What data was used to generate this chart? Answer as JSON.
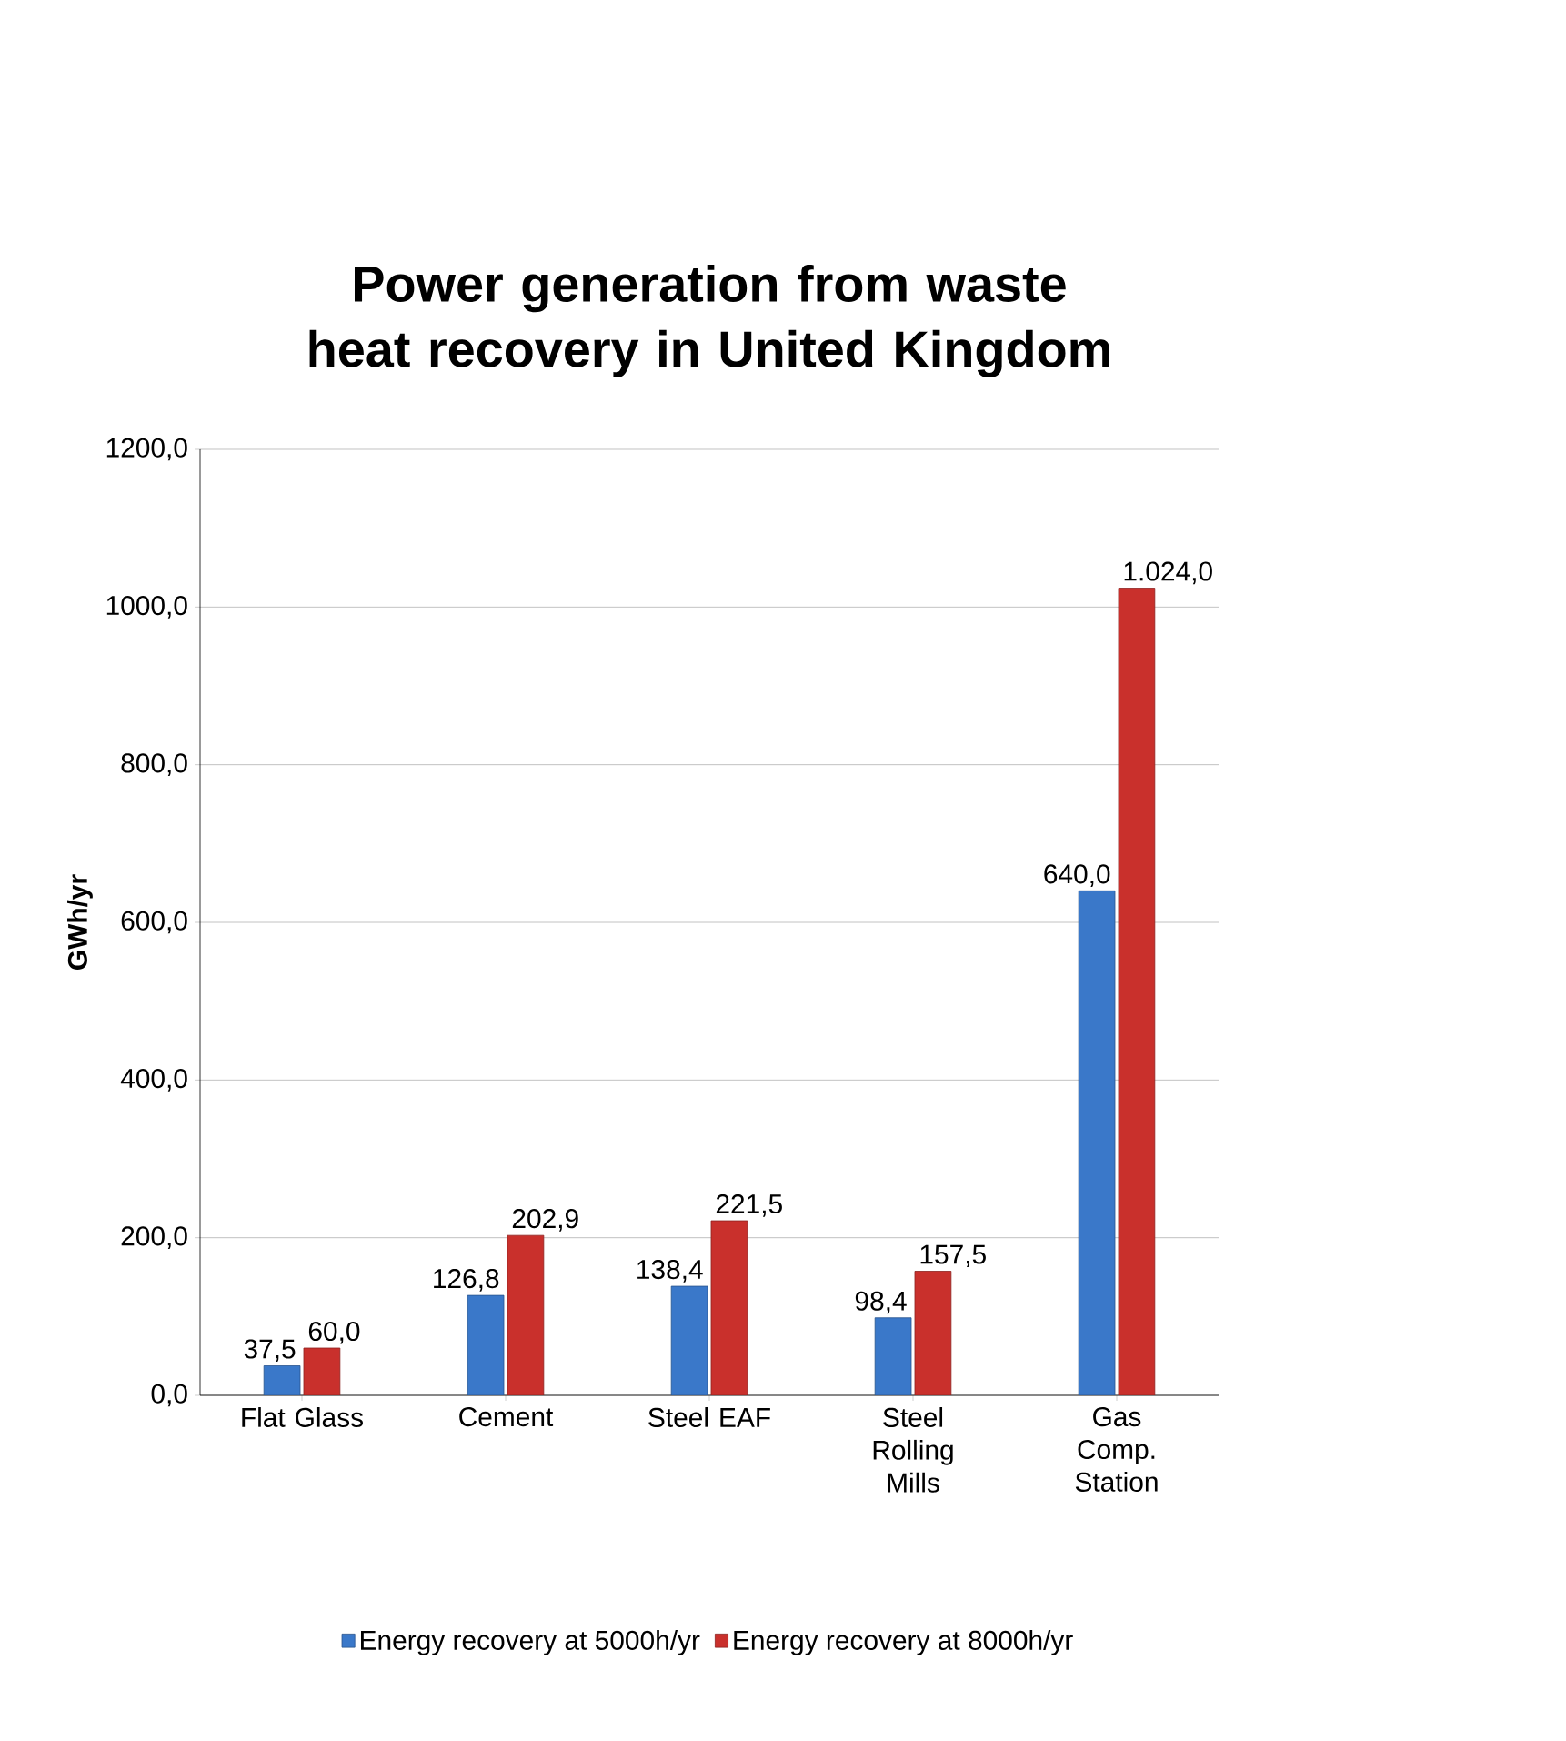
{
  "chart_data": {
    "type": "bar",
    "title": "Power generation from waste heat recovery in United Kingdom",
    "ylabel": "GWh/yr",
    "categories": [
      "Flat Glass",
      "Cement",
      "Steel EAF",
      "Steel Rolling Mills",
      "Gas Comp. Station"
    ],
    "series": [
      {
        "name": "Energy recovery at 5000h/yr",
        "color": "#3a78c9",
        "values": [
          37.5,
          126.8,
          138.4,
          98.4,
          640.0
        ],
        "value_labels": [
          "37,5",
          "126,8",
          "138,4",
          "98,4",
          "640,0"
        ]
      },
      {
        "name": "Energy recovery at 8000h/yr",
        "color": "#c9302c",
        "values": [
          60.0,
          202.9,
          221.5,
          157.5,
          1024.0
        ],
        "value_labels": [
          "60,0",
          "202,9",
          "221,5",
          "157,5",
          "1.024,0"
        ]
      }
    ],
    "ylim": [
      0,
      1200
    ],
    "yticks": [
      {
        "value": 0,
        "label": "0,0"
      },
      {
        "value": 200,
        "label": "200,0"
      },
      {
        "value": 400,
        "label": "400,0"
      },
      {
        "value": 600,
        "label": "600,0"
      },
      {
        "value": 800,
        "label": "800,0"
      },
      {
        "value": 1000,
        "label": "1000,0"
      },
      {
        "value": 1200,
        "label": "1200,0"
      }
    ],
    "grid": "y",
    "legend": "bottom"
  }
}
